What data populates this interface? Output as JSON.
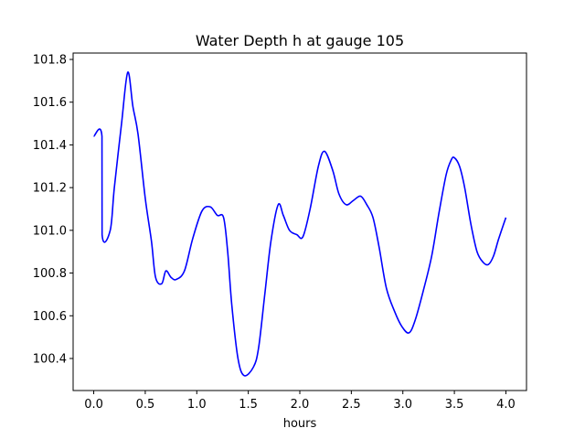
{
  "chart_data": {
    "type": "line",
    "title": "Water Depth h at gauge 105",
    "xlabel": "hours",
    "ylabel": "",
    "xlim": [
      -0.2,
      4.2
    ],
    "ylim": [
      100.25,
      101.83
    ],
    "xticks": [
      0.0,
      0.5,
      1.0,
      1.5,
      2.0,
      2.5,
      3.0,
      3.5,
      4.0
    ],
    "xtick_labels": [
      "0.0",
      "0.5",
      "1.0",
      "1.5",
      "2.0",
      "2.5",
      "3.0",
      "3.5",
      "4.0"
    ],
    "yticks": [
      100.4,
      100.6,
      100.8,
      101.0,
      101.2,
      101.4,
      101.6,
      101.8
    ],
    "ytick_labels": [
      "100.4",
      "100.6",
      "100.8",
      "101.0",
      "101.2",
      "101.4",
      "101.6",
      "101.8"
    ],
    "grid": false,
    "series": [
      {
        "name": "",
        "color": "#0000ff",
        "x": [
          0.0,
          0.08,
          0.081,
          0.16,
          0.2,
          0.27,
          0.33,
          0.38,
          0.43,
          0.5,
          0.56,
          0.6,
          0.66,
          0.7,
          0.75,
          0.8,
          0.88,
          0.96,
          1.05,
          1.13,
          1.2,
          1.26,
          1.3,
          1.34,
          1.4,
          1.46,
          1.55,
          1.6,
          1.66,
          1.72,
          1.79,
          1.84,
          1.9,
          1.97,
          2.03,
          2.1,
          2.18,
          2.24,
          2.32,
          2.38,
          2.45,
          2.52,
          2.59,
          2.65,
          2.71,
          2.77,
          2.84,
          2.92,
          2.99,
          3.06,
          3.12,
          3.2,
          3.28,
          3.35,
          3.42,
          3.47,
          3.5,
          3.55,
          3.6,
          3.66,
          3.72,
          3.78,
          3.83,
          3.88,
          3.93,
          4.0
        ],
        "y": [
          101.44,
          101.44,
          100.98,
          101.0,
          101.2,
          101.5,
          101.74,
          101.58,
          101.45,
          101.15,
          100.95,
          100.78,
          100.75,
          100.81,
          100.78,
          100.77,
          100.81,
          100.96,
          101.09,
          101.11,
          101.07,
          101.06,
          100.9,
          100.65,
          100.4,
          100.32,
          100.36,
          100.45,
          100.7,
          100.95,
          101.12,
          101.07,
          101.0,
          100.98,
          100.97,
          101.1,
          101.3,
          101.37,
          101.28,
          101.17,
          101.12,
          101.14,
          101.16,
          101.12,
          101.06,
          100.92,
          100.73,
          100.62,
          100.55,
          100.52,
          100.58,
          100.72,
          100.88,
          101.08,
          101.26,
          101.33,
          101.34,
          101.3,
          101.2,
          101.03,
          100.9,
          100.85,
          100.84,
          100.88,
          100.96,
          101.06
        ]
      }
    ]
  }
}
